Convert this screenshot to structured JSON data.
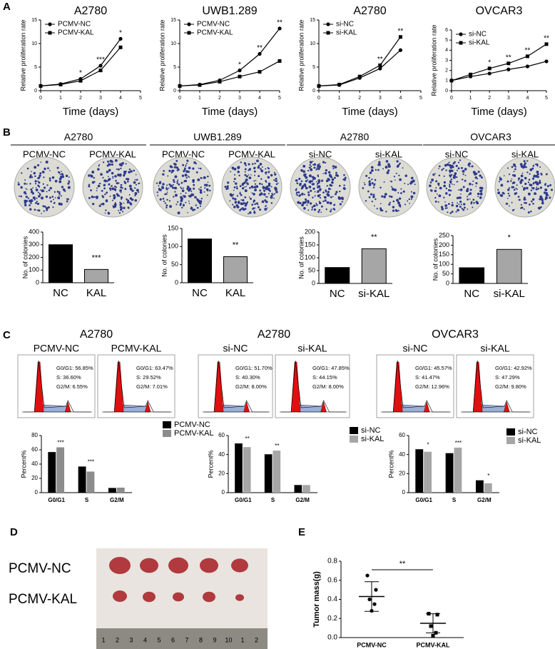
{
  "panel_labels": [
    "A",
    "B",
    "C",
    "D",
    "E"
  ],
  "chart_data": [
    {
      "type": "line",
      "title": "A2780",
      "xlabel": "Time (days)",
      "ylabel": "Relative proliferation rate",
      "x": [
        0,
        1,
        2,
        3,
        4
      ],
      "xlim": [
        0,
        5
      ],
      "xticks": [
        0,
        1,
        2,
        3,
        4,
        5
      ],
      "ylim": [
        0,
        15
      ],
      "yticks": [
        0,
        5,
        10,
        15
      ],
      "series": [
        {
          "name": "PCMV-NC",
          "color": "#000000",
          "marker": "circle",
          "values": [
            1,
            1.4,
            2.5,
            5.3,
            11
          ]
        },
        {
          "name": "PCMV-KAL",
          "color": "#000000",
          "marker": "square",
          "values": [
            1,
            1.3,
            2.1,
            4.3,
            9.2
          ]
        }
      ],
      "annotations": [
        {
          "x": 2,
          "text": "*"
        },
        {
          "x": 3,
          "text": "***"
        },
        {
          "x": 4,
          "text": "*"
        }
      ]
    },
    {
      "type": "line",
      "title": "UWB1.289",
      "xlabel": "Time (days)",
      "ylabel": "Relative proliferation rate",
      "x": [
        0,
        1,
        2,
        3,
        4,
        5
      ],
      "xlim": [
        0,
        5
      ],
      "xticks": [
        0,
        1,
        2,
        3,
        4,
        5
      ],
      "ylim": [
        0,
        15
      ],
      "yticks": [
        0,
        5,
        10,
        15
      ],
      "series": [
        {
          "name": "PCMV-NC",
          "color": "#000000",
          "marker": "circle",
          "values": [
            1,
            1.3,
            2.2,
            4.3,
            7.8,
            13.2
          ]
        },
        {
          "name": "PCMV-KAL",
          "color": "#000000",
          "marker": "square",
          "values": [
            1,
            1.2,
            1.9,
            3.0,
            4.0,
            6.3
          ]
        }
      ],
      "annotations": [
        {
          "x": 3,
          "text": "*"
        },
        {
          "x": 4,
          "text": "**"
        },
        {
          "x": 5,
          "text": "**"
        }
      ]
    },
    {
      "type": "line",
      "title": "A2780",
      "xlabel": "Time (days)",
      "ylabel": "Relative proliferation rate",
      "x": [
        0,
        1,
        2,
        3,
        4
      ],
      "xlim": [
        0,
        5
      ],
      "xticks": [
        0,
        1,
        2,
        3,
        4,
        5
      ],
      "ylim": [
        0,
        15
      ],
      "yticks": [
        0,
        5,
        10,
        15
      ],
      "series": [
        {
          "name": "si-NC",
          "color": "#000000",
          "marker": "circle",
          "values": [
            1,
            1.2,
            2.7,
            4.7,
            8.6
          ]
        },
        {
          "name": "si-KAL",
          "color": "#000000",
          "marker": "square",
          "values": [
            1,
            1.3,
            3.0,
            5.4,
            11.4
          ]
        }
      ],
      "annotations": [
        {
          "x": 3,
          "text": "**"
        },
        {
          "x": 4,
          "text": "**"
        }
      ]
    },
    {
      "type": "line",
      "title": "OVCAR3",
      "xlabel": "Time (days)",
      "ylabel": "Relative proliferation rate",
      "x": [
        0,
        1,
        2,
        3,
        4,
        5
      ],
      "xlim": [
        0,
        5
      ],
      "xticks": [
        0,
        1,
        2,
        3,
        4,
        5
      ],
      "ylim": [
        0,
        6
      ],
      "yticks": [
        0,
        1,
        2,
        3,
        4,
        5,
        6
      ],
      "series": [
        {
          "name": "si-NC",
          "color": "#000000",
          "marker": "circle",
          "values": [
            1,
            1.4,
            1.7,
            2.1,
            2.4,
            2.9
          ]
        },
        {
          "name": "si-KAL",
          "color": "#000000",
          "marker": "square",
          "values": [
            1,
            1.6,
            2.2,
            2.7,
            3.4,
            4.6
          ]
        }
      ],
      "annotations": [
        {
          "x": 2,
          "text": "*"
        },
        {
          "x": 3,
          "text": "**"
        },
        {
          "x": 4,
          "text": "**"
        },
        {
          "x": 5,
          "text": "**"
        }
      ]
    },
    {
      "type": "bar",
      "ylabel": "No. of colonies",
      "categories": [
        "NC",
        "KAL"
      ],
      "values": [
        300,
        105
      ],
      "colors": [
        "#000000",
        "#a6a6a6"
      ],
      "ylim": [
        0,
        400
      ],
      "yticks": [
        0,
        100,
        200,
        300,
        400
      ],
      "annotations": [
        {
          "category": "KAL",
          "text": "***"
        }
      ]
    },
    {
      "type": "bar",
      "ylabel": "No. of colonies",
      "categories": [
        "NC",
        "KAL"
      ],
      "values": [
        121,
        72
      ],
      "colors": [
        "#000000",
        "#a6a6a6"
      ],
      "ylim": [
        0,
        150
      ],
      "yticks": [
        0,
        50,
        100,
        150
      ],
      "annotations": [
        {
          "category": "KAL",
          "text": "**"
        }
      ]
    },
    {
      "type": "bar",
      "ylabel": "No. of colonies",
      "categories": [
        "NC",
        "si-KAL"
      ],
      "values": [
        62,
        135
      ],
      "colors": [
        "#000000",
        "#a6a6a6"
      ],
      "ylim": [
        0,
        200
      ],
      "yticks": [
        0,
        50,
        100,
        150,
        200
      ],
      "annotations": [
        {
          "category": "si-KAL",
          "text": "**"
        }
      ]
    },
    {
      "type": "bar",
      "ylabel": "No. of colonies",
      "categories": [
        "NC",
        "si-KAL"
      ],
      "values": [
        82,
        178
      ],
      "colors": [
        "#000000",
        "#a6a6a6"
      ],
      "ylim": [
        0,
        250
      ],
      "yticks": [
        0,
        50,
        100,
        150,
        200,
        250
      ],
      "annotations": [
        {
          "category": "si-KAL",
          "text": "*"
        }
      ]
    },
    {
      "type": "grouped-bar",
      "ylabel": "Percent%",
      "categories": [
        "G0/G1",
        "S",
        "G2/M"
      ],
      "ylim": [
        0,
        80
      ],
      "yticks": [
        0,
        20,
        40,
        60,
        80
      ],
      "series": [
        {
          "name": "PCMV-NC",
          "color": "#000000",
          "values": [
            56.85,
            36.6,
            6.55
          ]
        },
        {
          "name": "PCMV-KAL",
          "color": "#8c8c8c",
          "values": [
            63.47,
            29.52,
            7.01
          ]
        }
      ],
      "annotations": [
        {
          "category": "G0/G1",
          "text": "***"
        },
        {
          "category": "S",
          "text": "***"
        }
      ]
    },
    {
      "type": "grouped-bar",
      "ylabel": "Percent%",
      "categories": [
        "G0/G1",
        "S",
        "G2/M"
      ],
      "ylim": [
        0,
        60
      ],
      "yticks": [
        0,
        20,
        40,
        60
      ],
      "series": [
        {
          "name": "si-NC",
          "color": "#000000",
          "values": [
            51.7,
            40.3,
            8.0
          ]
        },
        {
          "name": "si-KAL",
          "color": "#a6a6a6",
          "values": [
            47.85,
            44.15,
            8.0
          ]
        }
      ],
      "annotations": [
        {
          "category": "G0/G1",
          "text": "**"
        },
        {
          "category": "S",
          "text": "**"
        }
      ]
    },
    {
      "type": "grouped-bar",
      "ylabel": "Percent%",
      "categories": [
        "G0/G1",
        "S",
        "G2/M"
      ],
      "ylim": [
        0,
        60
      ],
      "yticks": [
        0,
        20,
        40,
        60
      ],
      "series": [
        {
          "name": "si-NC",
          "color": "#000000",
          "values": [
            45.57,
            41.47,
            12.96
          ]
        },
        {
          "name": "si-KAL",
          "color": "#a6a6a6",
          "values": [
            42.92,
            47.29,
            9.8
          ]
        }
      ],
      "annotations": [
        {
          "category": "G0/G1",
          "text": "*"
        },
        {
          "category": "S",
          "text": "***"
        },
        {
          "category": "G2/M",
          "text": "*"
        }
      ]
    },
    {
      "type": "dot",
      "ylabel": "Tumor mass(g)",
      "categories": [
        "PCMV-NC",
        "PCMV-KAL"
      ],
      "points": [
        [
          0.65,
          0.5,
          0.4,
          0.35,
          0.28
        ],
        [
          0.25,
          0.24,
          0.12,
          0.05,
          0.02
        ]
      ],
      "means": [
        0.43,
        0.15
      ],
      "sd": [
        0.155,
        0.1
      ],
      "ylim": [
        0,
        0.8
      ],
      "yticks": [
        {
          "value": 0,
          "label": "0.0"
        },
        0.2,
        0.4,
        0.6,
        0.8
      ],
      "significance": "**"
    }
  ],
  "colony_panels": [
    {
      "title": "A2780",
      "labels": [
        "PCMV-NC",
        "PCMV-KAL"
      ]
    },
    {
      "title": "UWB1.289",
      "labels": [
        "PCMV-NC",
        "PCMV-KAL"
      ]
    },
    {
      "title": "A2780",
      "labels": [
        "si-NC",
        "si-KAL"
      ]
    },
    {
      "title": "OVCAR3",
      "labels": [
        "si-NC",
        "si-KAL"
      ]
    }
  ],
  "flow_panels": [
    {
      "title": "A2780",
      "plots": [
        {
          "label": "PCMV-NC",
          "stats": [
            "G0/G1: 56.85%",
            "S: 36.60%",
            "G2/M: 6.55%"
          ]
        },
        {
          "label": "PCMV-KAL",
          "stats": [
            "G0/G1: 63.47%",
            "S: 29.52%",
            "G2/M: 7.01%"
          ]
        }
      ]
    },
    {
      "title": "A2780",
      "plots": [
        {
          "label": "si-NC",
          "stats": [
            "G0/G1: 51.70%",
            "S: 40.30%",
            "G2/M: 8.00%"
          ]
        },
        {
          "label": "si-KAL",
          "stats": [
            "G0/G1: 47.85%",
            "S: 44.15%",
            "G2/M: 8.00%"
          ]
        }
      ]
    },
    {
      "title": "OVCAR3",
      "plots": [
        {
          "label": "si-NC",
          "stats": [
            "G0/G1: 45.57%",
            "S: 41.47%",
            "G2/M: 12.96%"
          ]
        },
        {
          "label": "si-KAL",
          "stats": [
            "G0/G1: 42.92%",
            "S: 47.29%",
            "G2/M: 9.80%"
          ]
        }
      ]
    }
  ],
  "tumor_photo": {
    "labels": [
      "PCMV-NC",
      "PCMV-KAL"
    ],
    "ruler": [
      "1",
      "2",
      "3",
      "4",
      "5",
      "6",
      "7",
      "8",
      "9",
      "10",
      "1",
      "2"
    ]
  }
}
